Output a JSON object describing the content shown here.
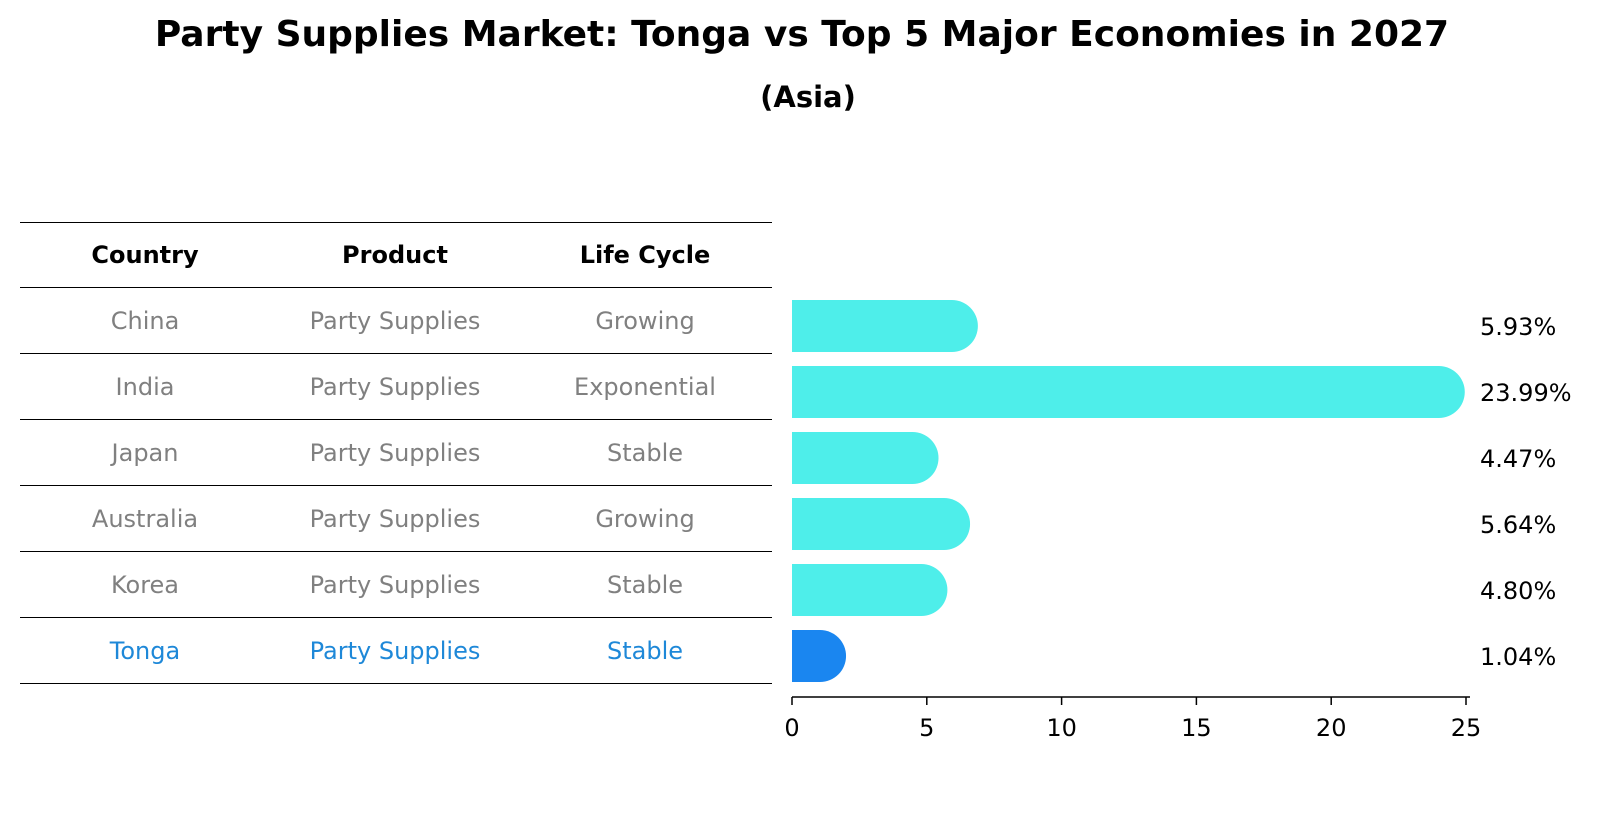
{
  "title": "Party Supplies Market: Tonga vs Top 5 Major Economies in 2027",
  "subtitle": "(Asia)",
  "table": {
    "headers": [
      "Country",
      "Product",
      "Life Cycle"
    ],
    "rows": [
      {
        "country": "China",
        "product": "Party Supplies",
        "life_cycle": "Growing"
      },
      {
        "country": "India",
        "product": "Party Supplies",
        "life_cycle": "Exponential"
      },
      {
        "country": "Japan",
        "product": "Party Supplies",
        "life_cycle": "Stable"
      },
      {
        "country": "Australia",
        "product": "Party Supplies",
        "life_cycle": "Growing"
      },
      {
        "country": "Korea",
        "product": "Party Supplies",
        "life_cycle": "Stable"
      },
      {
        "country": "Tonga",
        "product": "Party Supplies",
        "life_cycle": "Stable"
      }
    ]
  },
  "chart_data": {
    "type": "bar",
    "orientation": "horizontal",
    "categories": [
      "China",
      "India",
      "Japan",
      "Australia",
      "Korea",
      "Tonga"
    ],
    "values": [
      5.93,
      23.99,
      4.47,
      5.64,
      4.8,
      1.04
    ],
    "value_labels": [
      "5.93%",
      "23.99%",
      "4.47%",
      "5.64%",
      "4.80%",
      "1.04%"
    ],
    "xlim": [
      0,
      25
    ],
    "xticks": [
      0,
      5,
      10,
      15,
      20,
      25
    ],
    "highlight": "Tonga",
    "colors": {
      "default": "#4eeeea",
      "highlight": "#1a86f0"
    }
  }
}
